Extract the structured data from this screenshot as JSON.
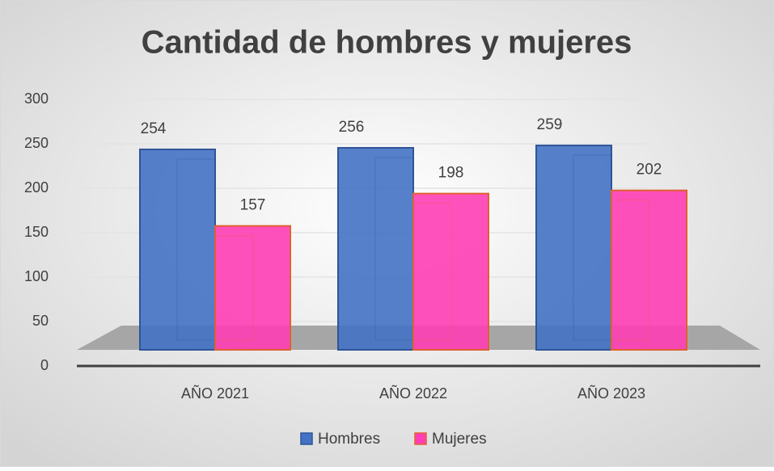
{
  "chart_data": {
    "type": "bar",
    "title": "Cantidad de hombres y mujeres",
    "categories": [
      "AÑO 2021",
      "AÑO 2022",
      "AÑO 2023"
    ],
    "series": [
      {
        "name": "Hombres",
        "color": "#4472c4",
        "values": [
          254,
          256,
          259
        ]
      },
      {
        "name": "Mujeres",
        "color": "#ff3eb5",
        "values": [
          157,
          198,
          202
        ]
      }
    ],
    "ylim": [
      0,
      300
    ],
    "yticks": [
      0,
      50,
      100,
      150,
      200,
      250,
      300
    ],
    "grid": true,
    "legend": "bottom"
  }
}
